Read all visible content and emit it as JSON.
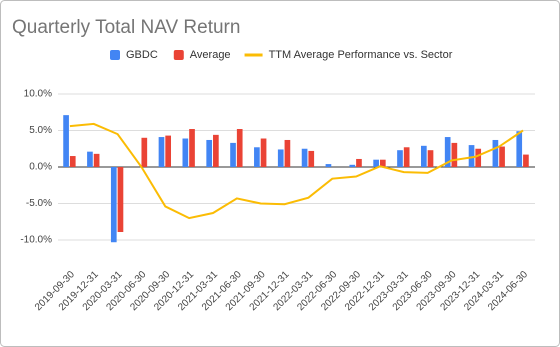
{
  "chart_data": {
    "type": "bar",
    "title": "Quarterly Total NAV Return",
    "categories": [
      "2019-09-30",
      "2019-12-31",
      "2020-03-31",
      "2020-06-30",
      "2020-09-30",
      "2020-12-31",
      "2021-03-31",
      "2021-06-30",
      "2021-09-30",
      "2021-12-31",
      "2022-03-31",
      "2022-06-30",
      "2022-09-30",
      "2022-12-31",
      "2023-03-31",
      "2023-06-30",
      "2023-09-30",
      "2023-12-31",
      "2024-03-31",
      "2024-06-30"
    ],
    "series": [
      {
        "name": "GBDC",
        "type": "bar",
        "color": "#4285f4",
        "values": [
          7.1,
          2.1,
          -10.3,
          0,
          4.1,
          3.9,
          3.7,
          3.3,
          2.7,
          2.4,
          2.5,
          0.4,
          0.3,
          1.0,
          2.3,
          2.9,
          4.1,
          3.0,
          3.7,
          4.9
        ]
      },
      {
        "name": "Average",
        "type": "bar",
        "color": "#ea4335",
        "values": [
          1.5,
          1.8,
          -8.9,
          4.0,
          4.3,
          5.2,
          4.4,
          5.2,
          3.9,
          3.7,
          2.2,
          0,
          1.1,
          1.0,
          2.7,
          2.3,
          3.3,
          2.5,
          2.8,
          1.7
        ]
      },
      {
        "name": "TTM Average Performance vs. Sector",
        "type": "line",
        "color": "#fbbc04",
        "values": [
          5.6,
          5.9,
          4.5,
          0.0,
          -5.4,
          -7.0,
          -6.3,
          -4.3,
          -5.0,
          -5.1,
          -4.2,
          -1.6,
          -1.3,
          0.1,
          -0.7,
          -0.8,
          0.9,
          1.4,
          2.8,
          5.0
        ]
      }
    ],
    "ylim": [
      -11.5,
      11.5
    ],
    "yticks": [
      {
        "value": 10,
        "label": "10.0%"
      },
      {
        "value": 5,
        "label": "5.0%"
      },
      {
        "value": 0,
        "label": "0.0%"
      },
      {
        "value": -5,
        "label": "-5.0%"
      },
      {
        "value": -10,
        "label": "-10.0%"
      }
    ],
    "grid": true
  }
}
